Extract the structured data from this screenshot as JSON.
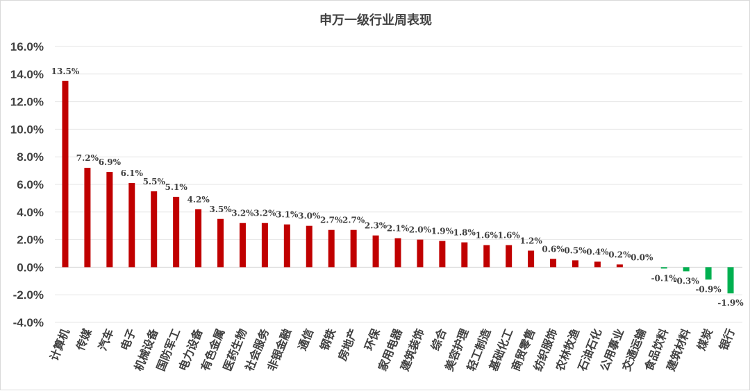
{
  "chart_data": {
    "type": "bar",
    "title": "申万一级行业周表现",
    "xlabel": "",
    "ylabel": "",
    "ylim": [
      -4.0,
      16.0
    ],
    "yticks": [
      -4.0,
      -2.0,
      0.0,
      2.0,
      4.0,
      6.0,
      8.0,
      10.0,
      12.0,
      14.0,
      16.0
    ],
    "ytick_labels": [
      "-4.0%",
      "-2.0%",
      "0.0%",
      "2.0%",
      "4.0%",
      "6.0%",
      "8.0%",
      "10.0%",
      "12.0%",
      "14.0%",
      "16.0%"
    ],
    "grid": true,
    "legend": "none",
    "categories": [
      "计算机",
      "传媒",
      "汽车",
      "电子",
      "机械设备",
      "国防军工",
      "电力设备",
      "有色金属",
      "医药生物",
      "社会服务",
      "非银金融",
      "通信",
      "钢铁",
      "房地产",
      "环保",
      "家用电器",
      "建筑装饰",
      "综合",
      "美容护理",
      "轻工制造",
      "基础化工",
      "商贸零售",
      "纺织服饰",
      "农林牧渔",
      "石油石化",
      "公用事业",
      "交通运输",
      "食品饮料",
      "建筑材料",
      "煤炭",
      "银行"
    ],
    "values": [
      13.5,
      7.2,
      6.9,
      6.1,
      5.5,
      5.1,
      4.2,
      3.5,
      3.2,
      3.2,
      3.1,
      3.0,
      2.7,
      2.7,
      2.3,
      2.1,
      2.0,
      1.9,
      1.8,
      1.6,
      1.6,
      1.2,
      0.6,
      0.5,
      0.4,
      0.2,
      0.0,
      -0.1,
      -0.3,
      -0.9,
      -1.9
    ],
    "data_labels": [
      "13.5%",
      "7.2%",
      "6.9%",
      "6.1%",
      "5.5%",
      "5.1%",
      "4.2%",
      "3.5%",
      "3.2%",
      "3.2%",
      "3.1%",
      "3.0%",
      "2.7%",
      "2.7%",
      "2.3%",
      "2.1%",
      "2.0%",
      "1.9%",
      "1.8%",
      "1.6%",
      "1.6%",
      "1.2%",
      "0.6%",
      "0.5%",
      "0.4%",
      "0.2%",
      "0.0%",
      "-0.1%",
      "-0.3%",
      "-0.9%",
      "-1.9%"
    ],
    "colors": {
      "positive": "#c00000",
      "negative": "#00b050"
    }
  }
}
